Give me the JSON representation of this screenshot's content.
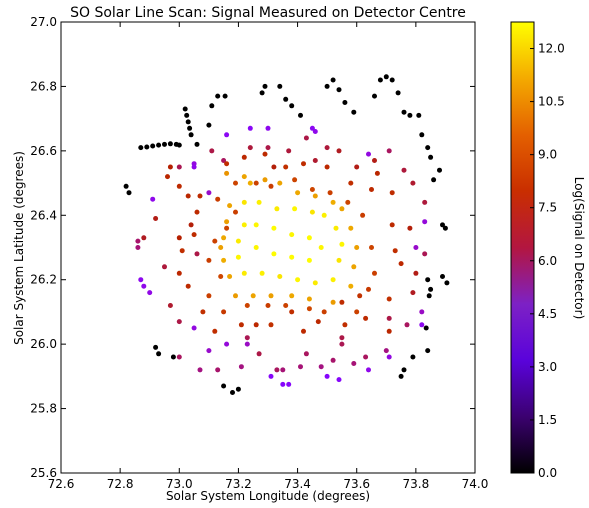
{
  "chart_data": {
    "type": "scatter",
    "title": "SO Solar Line Scan: Signal Measured on Detector Centre",
    "xlabel": "Solar System Longitude (degrees)",
    "ylabel": "Solar System Latitude (degrees)",
    "colorbar_label": "Log(Signal on Detector)",
    "xlim": [
      72.6,
      74.0
    ],
    "ylim": [
      25.6,
      27.0
    ],
    "clim": [
      0.0,
      12.75
    ],
    "colormap": "gnuplot",
    "grid": false,
    "x_ticks": [
      "72.6",
      "72.8",
      "73.0",
      "73.2",
      "73.4",
      "73.6",
      "73.8",
      "74.0"
    ],
    "y_ticks": [
      "25.6",
      "25.8",
      "26.0",
      "26.2",
      "26.4",
      "26.6",
      "26.8",
      "27.0"
    ],
    "colorbar_ticks": [
      "0.0",
      "1.5",
      "3.0",
      "4.5",
      "6.0",
      "7.5",
      "9.0",
      "10.5",
      "12.0"
    ],
    "colorbar_tick_values": [
      0.0,
      1.5,
      3.0,
      4.5,
      6.0,
      7.5,
      9.0,
      10.5,
      12.0
    ],
    "points": [
      [
        72.87,
        26.61,
        0.0
      ],
      [
        72.89,
        26.612,
        0.0
      ],
      [
        72.91,
        26.615,
        0.0
      ],
      [
        72.93,
        26.618,
        0.0
      ],
      [
        72.95,
        26.62,
        0.0
      ],
      [
        72.97,
        26.622,
        0.0
      ],
      [
        72.99,
        26.62,
        0.0
      ],
      [
        73.0,
        26.618,
        0.0
      ],
      [
        73.02,
        26.73,
        0.0
      ],
      [
        73.025,
        26.71,
        0.0
      ],
      [
        73.03,
        26.69,
        0.0
      ],
      [
        73.035,
        26.67,
        0.0
      ],
      [
        73.04,
        26.65,
        0.0
      ],
      [
        73.06,
        26.62,
        0.0
      ],
      [
        73.13,
        26.77,
        0.0
      ],
      [
        73.155,
        26.77,
        0.0
      ],
      [
        73.11,
        26.74,
        0.0
      ],
      [
        73.1,
        26.68,
        0.0
      ],
      [
        73.29,
        26.8,
        0.0
      ],
      [
        73.28,
        26.78,
        0.0
      ],
      [
        73.34,
        26.8,
        0.0
      ],
      [
        73.36,
        26.76,
        0.0
      ],
      [
        73.38,
        26.74,
        0.0
      ],
      [
        73.41,
        26.71,
        0.0
      ],
      [
        73.5,
        26.8,
        0.0
      ],
      [
        73.52,
        26.82,
        0.0
      ],
      [
        73.54,
        26.79,
        0.0
      ],
      [
        73.56,
        26.75,
        0.0
      ],
      [
        73.59,
        26.72,
        0.0
      ],
      [
        73.68,
        26.82,
        0.0
      ],
      [
        73.7,
        26.83,
        0.0
      ],
      [
        73.72,
        26.82,
        0.0
      ],
      [
        73.66,
        26.77,
        0.0
      ],
      [
        73.74,
        26.78,
        0.0
      ],
      [
        73.76,
        26.72,
        0.0
      ],
      [
        73.78,
        26.71,
        0.0
      ],
      [
        73.81,
        26.71,
        0.0
      ],
      [
        73.82,
        26.65,
        0.0
      ],
      [
        73.84,
        26.61,
        0.0
      ],
      [
        73.85,
        26.58,
        0.0
      ],
      [
        73.88,
        26.54,
        0.0
      ],
      [
        73.86,
        26.51,
        0.0
      ],
      [
        72.82,
        26.49,
        0.0
      ],
      [
        72.83,
        26.47,
        0.0
      ],
      [
        73.89,
        26.37,
        0.0
      ],
      [
        73.9,
        26.36,
        0.0
      ],
      [
        73.84,
        26.2,
        0.0
      ],
      [
        73.89,
        26.21,
        0.0
      ],
      [
        73.905,
        26.19,
        0.0
      ],
      [
        73.85,
        26.17,
        0.0
      ],
      [
        73.845,
        26.15,
        0.0
      ],
      [
        73.835,
        26.05,
        0.0
      ],
      [
        73.84,
        25.98,
        0.0
      ],
      [
        73.79,
        25.96,
        0.0
      ],
      [
        73.76,
        25.92,
        0.0
      ],
      [
        73.75,
        25.9,
        0.0
      ],
      [
        72.92,
        25.99,
        0.0
      ],
      [
        72.93,
        25.97,
        0.0
      ],
      [
        72.98,
        25.96,
        0.0
      ],
      [
        73.15,
        25.87,
        0.0
      ],
      [
        73.18,
        25.85,
        0.0
      ],
      [
        73.2,
        25.86,
        0.0
      ],
      [
        72.87,
        26.2,
        3.9
      ],
      [
        72.88,
        26.18,
        4.0
      ],
      [
        72.9,
        26.16,
        4.1
      ],
      [
        72.91,
        26.45,
        4.0
      ],
      [
        73.05,
        26.56,
        4.2
      ],
      [
        73.1,
        26.47,
        4.5
      ],
      [
        73.16,
        26.65,
        3.8
      ],
      [
        73.24,
        26.67,
        3.7
      ],
      [
        73.3,
        26.67,
        3.9
      ],
      [
        73.46,
        26.66,
        4.0
      ],
      [
        73.45,
        26.67,
        3.8
      ],
      [
        73.64,
        26.59,
        4.2
      ],
      [
        73.83,
        26.38,
        4.3
      ],
      [
        73.8,
        26.3,
        4.5
      ],
      [
        73.05,
        26.05,
        4.2
      ],
      [
        73.16,
        26.0,
        4.3
      ],
      [
        73.1,
        25.98,
        4.5
      ],
      [
        73.31,
        25.9,
        3.6
      ],
      [
        73.35,
        25.875,
        3.5
      ],
      [
        73.37,
        25.875,
        3.6
      ],
      [
        73.5,
        25.9,
        3.5
      ],
      [
        73.54,
        25.89,
        3.6
      ],
      [
        73.64,
        25.92,
        4.0
      ],
      [
        73.71,
        25.96,
        4.2
      ],
      [
        73.82,
        26.06,
        3.9
      ],
      [
        73.82,
        26.1,
        4.6
      ],
      [
        73.23,
        26.0,
        4.6
      ],
      [
        73.05,
        26.55,
        4.0
      ],
      [
        72.86,
        26.32,
        5.5
      ],
      [
        72.86,
        26.3,
        5.4
      ],
      [
        72.92,
        26.39,
        6.2
      ],
      [
        72.95,
        26.24,
        5.9
      ],
      [
        73.0,
        26.55,
        5.7
      ],
      [
        73.11,
        26.6,
        5.8
      ],
      [
        73.15,
        26.57,
        5.6
      ],
      [
        73.24,
        26.61,
        5.9
      ],
      [
        73.06,
        26.28,
        5.8
      ],
      [
        73.04,
        26.37,
        6.3
      ],
      [
        73.0,
        26.33,
        6.4
      ],
      [
        73.0,
        26.07,
        5.8
      ],
      [
        72.97,
        26.12,
        6.0
      ],
      [
        73.0,
        25.96,
        5.6
      ],
      [
        73.07,
        25.92,
        5.3
      ],
      [
        73.13,
        25.92,
        5.5
      ],
      [
        73.21,
        25.93,
        5.3
      ],
      [
        73.23,
        26.02,
        5.7
      ],
      [
        73.27,
        25.97,
        5.8
      ],
      [
        73.33,
        25.92,
        5.6
      ],
      [
        73.35,
        25.92,
        5.4
      ],
      [
        73.41,
        25.93,
        5.4
      ],
      [
        73.43,
        25.97,
        5.6
      ],
      [
        73.48,
        25.93,
        5.3
      ],
      [
        73.52,
        25.95,
        5.5
      ],
      [
        73.55,
        26.0,
        5.7
      ],
      [
        73.59,
        25.94,
        5.4
      ],
      [
        73.63,
        25.96,
        5.6
      ],
      [
        73.7,
        25.98,
        5.3
      ],
      [
        73.71,
        26.08,
        5.8
      ],
      [
        73.77,
        26.06,
        5.6
      ],
      [
        73.79,
        26.16,
        6.1
      ],
      [
        73.8,
        26.22,
        6.2
      ],
      [
        73.83,
        26.28,
        5.7
      ],
      [
        73.78,
        26.36,
        6.3
      ],
      [
        73.83,
        26.44,
        5.9
      ],
      [
        73.79,
        26.5,
        6.0
      ],
      [
        73.76,
        26.54,
        5.9
      ],
      [
        73.71,
        26.6,
        5.6
      ],
      [
        73.66,
        26.57,
        6.2
      ],
      [
        73.6,
        26.55,
        6.2
      ],
      [
        73.54,
        26.6,
        6.1
      ],
      [
        73.5,
        26.61,
        5.9
      ],
      [
        73.46,
        26.57,
        6.0
      ],
      [
        73.43,
        26.64,
        5.8
      ],
      [
        73.37,
        26.6,
        5.9
      ],
      [
        73.32,
        26.55,
        6.3
      ],
      [
        73.3,
        26.61,
        5.8
      ],
      [
        72.88,
        26.33,
        6.1
      ],
      [
        72.97,
        26.55,
        6.4
      ],
      [
        73.55,
        26.02,
        5.8
      ],
      [
        72.96,
        26.52,
        6.8
      ],
      [
        73.07,
        26.46,
        7.0
      ],
      [
        73.16,
        26.56,
        7.2
      ],
      [
        73.22,
        26.58,
        6.9
      ],
      [
        73.29,
        26.59,
        7.0
      ],
      [
        73.36,
        26.55,
        7.3
      ],
      [
        73.42,
        26.56,
        7.1
      ],
      [
        73.5,
        26.55,
        6.9
      ],
      [
        73.58,
        26.5,
        7.2
      ],
      [
        73.65,
        26.48,
        7.0
      ],
      [
        73.67,
        26.53,
        6.8
      ],
      [
        73.72,
        26.47,
        7.1
      ],
      [
        73.72,
        26.37,
        7.0
      ],
      [
        73.73,
        26.29,
        7.2
      ],
      [
        73.75,
        26.25,
        6.9
      ],
      [
        73.71,
        26.14,
        7.3
      ],
      [
        73.71,
        26.04,
        6.8
      ],
      [
        73.63,
        26.08,
        7.0
      ],
      [
        73.61,
        26.15,
        7.4
      ],
      [
        73.56,
        26.06,
        7.2
      ],
      [
        73.55,
        26.13,
        7.1
      ],
      [
        73.47,
        26.07,
        6.9
      ],
      [
        73.42,
        26.04,
        7.0
      ],
      [
        73.38,
        26.1,
        7.2
      ],
      [
        73.31,
        26.06,
        7.3
      ],
      [
        73.26,
        26.06,
        6.9
      ],
      [
        73.21,
        26.06,
        7.1
      ],
      [
        73.12,
        26.04,
        7.2
      ],
      [
        73.08,
        26.1,
        7.3
      ],
      [
        73.03,
        26.18,
        7.0
      ],
      [
        73.0,
        26.22,
        6.9
      ],
      [
        73.01,
        26.29,
        7.2
      ],
      [
        73.05,
        26.34,
        7.1
      ],
      [
        73.06,
        26.41,
        7.0
      ],
      [
        73.03,
        26.46,
        6.8
      ],
      [
        73.0,
        26.49,
        7.0
      ],
      [
        73.13,
        26.45,
        7.9
      ],
      [
        73.1,
        26.15,
        8.0
      ],
      [
        73.15,
        26.1,
        7.8
      ],
      [
        73.19,
        26.5,
        8.2
      ],
      [
        73.26,
        26.5,
        8.1
      ],
      [
        73.31,
        26.49,
        7.9
      ],
      [
        73.39,
        26.51,
        8.2
      ],
      [
        73.45,
        26.48,
        8.3
      ],
      [
        73.51,
        26.47,
        8.0
      ],
      [
        73.57,
        26.44,
        8.2
      ],
      [
        73.62,
        26.4,
        7.9
      ],
      [
        73.65,
        26.3,
        8.2
      ],
      [
        73.66,
        26.22,
        8.0
      ],
      [
        73.64,
        26.17,
        7.8
      ],
      [
        73.6,
        26.1,
        8.1
      ],
      [
        73.49,
        26.1,
        8.0
      ],
      [
        73.44,
        26.11,
        8.3
      ],
      [
        73.36,
        26.12,
        8.1
      ],
      [
        73.3,
        26.12,
        7.9
      ],
      [
        73.23,
        26.12,
        8.2
      ],
      [
        73.14,
        26.21,
        8.3
      ],
      [
        73.1,
        26.26,
        7.9
      ],
      [
        73.12,
        26.32,
        8.1
      ],
      [
        73.16,
        26.36,
        8.2
      ],
      [
        73.19,
        26.41,
        8.0
      ],
      [
        73.16,
        26.53,
        10.6
      ],
      [
        73.22,
        26.52,
        11.0
      ],
      [
        73.24,
        26.5,
        11.2
      ],
      [
        73.29,
        26.51,
        10.8
      ],
      [
        73.34,
        26.5,
        11.0
      ],
      [
        73.4,
        26.47,
        11.1
      ],
      [
        73.46,
        26.46,
        10.9
      ],
      [
        73.52,
        26.44,
        11.2
      ],
      [
        73.55,
        26.42,
        11.0
      ],
      [
        73.58,
        26.36,
        11.1
      ],
      [
        73.6,
        26.3,
        10.9
      ],
      [
        73.59,
        26.24,
        11.0
      ],
      [
        73.58,
        26.18,
        11.2
      ],
      [
        73.52,
        26.13,
        10.8
      ],
      [
        73.44,
        26.14,
        11.0
      ],
      [
        73.38,
        26.15,
        11.1
      ],
      [
        73.31,
        26.15,
        10.9
      ],
      [
        73.25,
        26.15,
        11.0
      ],
      [
        73.19,
        26.15,
        10.8
      ],
      [
        73.17,
        26.21,
        11.0
      ],
      [
        73.15,
        26.26,
        11.2
      ],
      [
        73.14,
        26.3,
        10.9
      ],
      [
        73.15,
        26.33,
        11.1
      ],
      [
        73.16,
        26.38,
        10.9
      ],
      [
        73.17,
        26.43,
        11.0
      ],
      [
        73.22,
        26.44,
        12.3
      ],
      [
        73.27,
        26.44,
        12.5
      ],
      [
        73.33,
        26.42,
        12.4
      ],
      [
        73.39,
        26.42,
        12.6
      ],
      [
        73.45,
        26.41,
        12.3
      ],
      [
        73.49,
        26.4,
        12.5
      ],
      [
        73.53,
        26.36,
        12.4
      ],
      [
        73.55,
        26.31,
        12.6
      ],
      [
        73.54,
        26.26,
        12.3
      ],
      [
        73.52,
        26.2,
        12.5
      ],
      [
        73.46,
        26.19,
        12.4
      ],
      [
        73.4,
        26.2,
        12.6
      ],
      [
        73.34,
        26.21,
        12.3
      ],
      [
        73.28,
        26.22,
        12.5
      ],
      [
        73.22,
        26.22,
        12.4
      ],
      [
        73.2,
        26.27,
        12.6
      ],
      [
        73.2,
        26.32,
        12.4
      ],
      [
        73.22,
        26.37,
        12.5
      ],
      [
        73.26,
        26.37,
        12.6
      ],
      [
        73.32,
        26.36,
        12.7
      ],
      [
        73.38,
        26.34,
        12.6
      ],
      [
        73.44,
        26.33,
        12.7
      ],
      [
        73.48,
        26.3,
        12.6
      ],
      [
        73.44,
        26.26,
        12.7
      ],
      [
        73.38,
        26.27,
        12.7
      ],
      [
        73.32,
        26.28,
        12.7
      ],
      [
        73.26,
        26.3,
        12.6
      ]
    ]
  }
}
